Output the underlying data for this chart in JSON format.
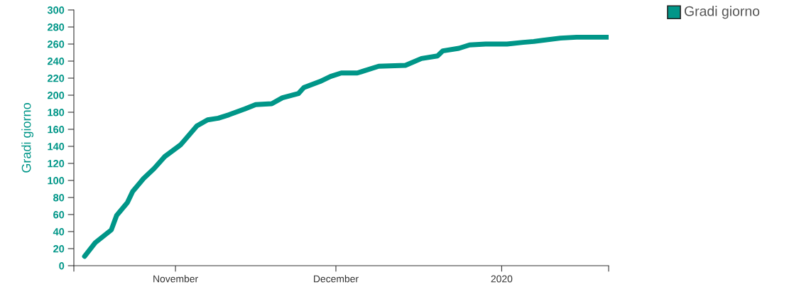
{
  "chart_data": {
    "type": "line",
    "ylabel": "Gradi giorno",
    "x": [
      "2019-10-15",
      "2019-10-17",
      "2019-10-20",
      "2019-10-21",
      "2019-10-23",
      "2019-10-24",
      "2019-10-26",
      "2019-10-28",
      "2019-10-30",
      "2019-11-02",
      "2019-11-05",
      "2019-11-07",
      "2019-11-09",
      "2019-11-11",
      "2019-11-14",
      "2019-11-16",
      "2019-11-19",
      "2019-11-21",
      "2019-11-24",
      "2019-11-25",
      "2019-11-28",
      "2019-11-30",
      "2019-12-02",
      "2019-12-05",
      "2019-12-06",
      "2019-12-09",
      "2019-12-14",
      "2019-12-17",
      "2019-12-20",
      "2019-12-21",
      "2019-12-24",
      "2019-12-26",
      "2019-12-29",
      "2020-01-02",
      "2020-01-05",
      "2020-01-07",
      "2020-01-12",
      "2020-01-15",
      "2020-01-21"
    ],
    "series": [
      {
        "name": "Gradi giorno",
        "color": "#009688",
        "values": [
          11,
          27,
          42,
          59,
          74,
          87,
          102,
          114,
          128,
          142,
          164,
          171,
          173,
          177,
          184,
          189,
          190,
          197,
          202,
          209,
          216,
          222,
          226,
          226,
          228,
          234,
          235,
          243,
          246,
          252,
          255,
          259,
          260,
          260,
          262,
          263,
          267,
          268,
          268
        ]
      }
    ],
    "xlim": [
      "2019-10-13",
      "2020-01-21"
    ],
    "xticks": [
      {
        "value": "2019-10-13",
        "label": null
      },
      {
        "value": "2019-11-01",
        "label": "November"
      },
      {
        "value": "2019-12-01",
        "label": "December"
      },
      {
        "value": "2020-01-01",
        "label": "2020"
      },
      {
        "value": "2020-01-21",
        "label": null
      }
    ],
    "ylim": [
      0,
      300
    ],
    "yticks": [
      0,
      20,
      40,
      60,
      80,
      100,
      120,
      140,
      160,
      180,
      200,
      220,
      240,
      260,
      280,
      300
    ],
    "legend": "top right"
  }
}
